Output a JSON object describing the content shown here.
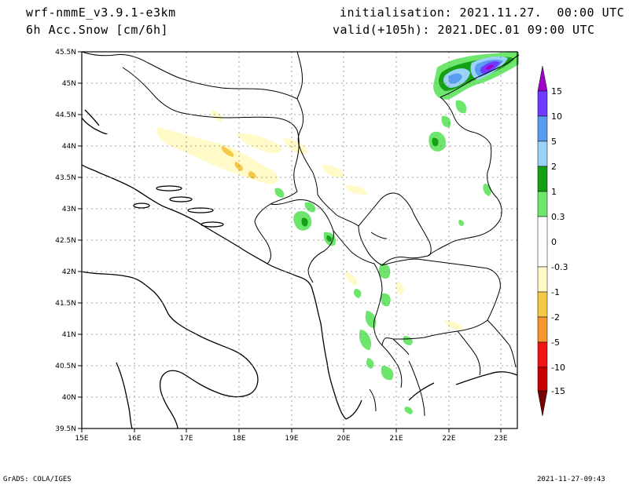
{
  "header": {
    "model": "wrf-nmmE_v3.9.1-e3km",
    "field": "6h Acc.Snow [cm/6h]",
    "initialisation": "initialisation: 2021.11.27.  00:00 UTC",
    "valid": "valid(+105h): 2021.DEC.01 09:00 UTC"
  },
  "footer": {
    "left": "GrADS: COLA/IGES",
    "right": "2021-11-27-09:43"
  },
  "map": {
    "lon_range": [
      15,
      23.3
    ],
    "lat_range": [
      39.5,
      45.5
    ],
    "lon_ticks": [
      "15E",
      "16E",
      "17E",
      "18E",
      "19E",
      "20E",
      "21E",
      "22E",
      "23E"
    ],
    "lat_ticks": [
      "45.5N",
      "45N",
      "44.5N",
      "44N",
      "43.5N",
      "43N",
      "42.5N",
      "42N",
      "41.5N",
      "41N",
      "40.5N",
      "40N",
      "39.5N"
    ],
    "grid": true
  },
  "colorbar": {
    "labels": [
      "15",
      "10",
      "5",
      "2",
      "1",
      "0.3",
      "0",
      "-0.3",
      "-1",
      "-2",
      "-5",
      "-10",
      "-15"
    ],
    "colors": [
      "#a000c8",
      "#6e3cff",
      "#5a9cf0",
      "#9ad2f8",
      "#14a014",
      "#6ee66e",
      "#ffffff",
      "#fffac8",
      "#f5c846",
      "#f59632",
      "#f01414",
      "#c80000",
      "#780000"
    ]
  }
}
